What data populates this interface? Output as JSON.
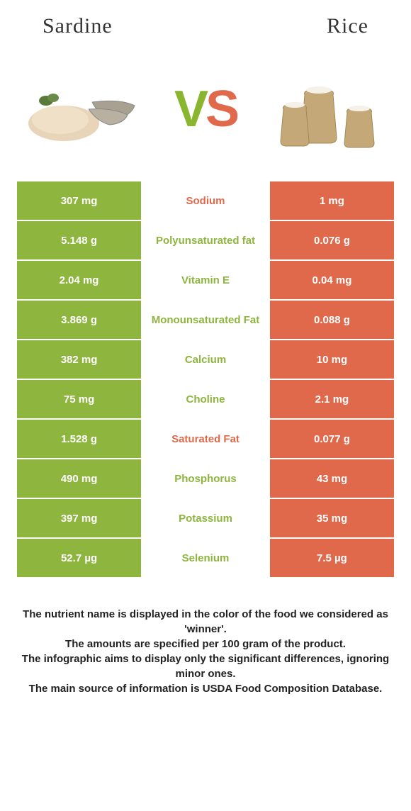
{
  "header": {
    "left_title": "Sardine",
    "right_title": "Rice",
    "vs_v": "V",
    "vs_s": "S"
  },
  "colors": {
    "green": "#8eb53e",
    "orange": "#e1694b",
    "green_text": "#8eb53e",
    "orange_text": "#e1694b",
    "white": "#ffffff"
  },
  "rows": [
    {
      "left": "307 mg",
      "center": "Sodium",
      "right": "1 mg",
      "winner": "orange"
    },
    {
      "left": "5.148 g",
      "center": "Polyunsaturated fat",
      "right": "0.076 g",
      "winner": "green"
    },
    {
      "left": "2.04 mg",
      "center": "Vitamin E",
      "right": "0.04 mg",
      "winner": "green"
    },
    {
      "left": "3.869 g",
      "center": "Monounsaturated Fat",
      "right": "0.088 g",
      "winner": "green"
    },
    {
      "left": "382 mg",
      "center": "Calcium",
      "right": "10 mg",
      "winner": "green"
    },
    {
      "left": "75 mg",
      "center": "Choline",
      "right": "2.1 mg",
      "winner": "green"
    },
    {
      "left": "1.528 g",
      "center": "Saturated Fat",
      "right": "0.077 g",
      "winner": "orange"
    },
    {
      "left": "490 mg",
      "center": "Phosphorus",
      "right": "43 mg",
      "winner": "green"
    },
    {
      "left": "397 mg",
      "center": "Potassium",
      "right": "35 mg",
      "winner": "green"
    },
    {
      "left": "52.7 µg",
      "center": "Selenium",
      "right": "7.5 µg",
      "winner": "green"
    }
  ],
  "footer": {
    "line1": "The nutrient name is displayed in the color of the food we considered as 'winner'.",
    "line2": "The amounts are specified per 100 gram of the product.",
    "line3": "The infographic aims to display only the significant differences, ignoring minor ones.",
    "line4": "The main source of information is USDA Food Composition Database."
  }
}
